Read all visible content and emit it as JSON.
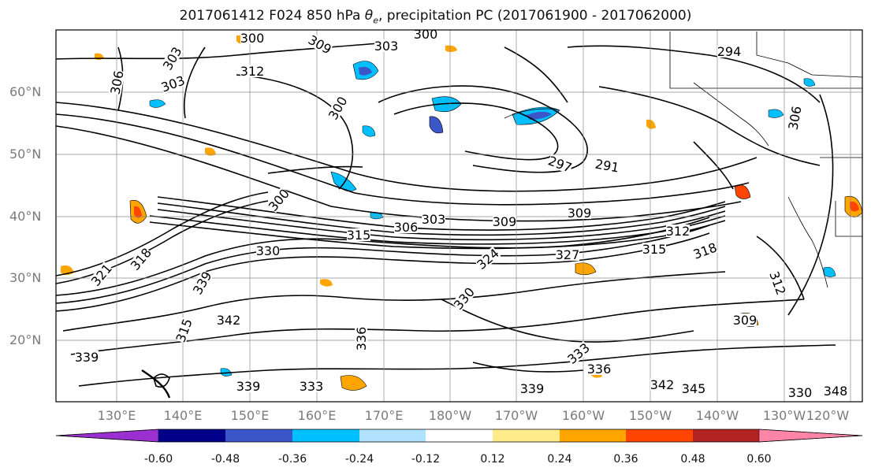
{
  "title": {
    "prefix": "2017061412 F024 850 hPa ",
    "theta": "θ",
    "sub": "e",
    "suffix": ", precipitation PC (2017061900 - 2017062000)"
  },
  "map": {
    "lat_labels": [
      "60°N",
      "50°N",
      "40°N",
      "30°N",
      "20°N"
    ],
    "lon_labels": [
      "130°E",
      "140°E",
      "150°E",
      "160°E",
      "170°E",
      "180°W",
      "170°W",
      "160°W",
      "150°W",
      "140°W",
      "130°W",
      "120°W"
    ],
    "contour_labels": [
      "300",
      "303",
      "309",
      "312",
      "306",
      "303",
      "300",
      "294",
      "297",
      "291",
      "306",
      "303",
      "300",
      "309",
      "330",
      "315",
      "318",
      "339",
      "342",
      "315",
      "336",
      "339",
      "312",
      "309",
      "339",
      "333",
      "330",
      "300",
      "303",
      "306",
      "309",
      "312",
      "315",
      "318",
      "321",
      "324",
      "327",
      "330",
      "333",
      "336",
      "339",
      "342",
      "345",
      "348"
    ]
  },
  "colorbar": {
    "colors": [
      "#9b30d0",
      "#00008b",
      "#3a56c8",
      "#00bfff",
      "#b0e2ff",
      "#ffffff",
      "#ffeb8a",
      "#ffa500",
      "#ff4500",
      "#b22222",
      "#ff85a8"
    ],
    "tick_labels": [
      "-0.60",
      "-0.48",
      "-0.36",
      "-0.24",
      "-0.12",
      "0.12",
      "0.24",
      "0.36",
      "0.48",
      "0.60"
    ]
  }
}
